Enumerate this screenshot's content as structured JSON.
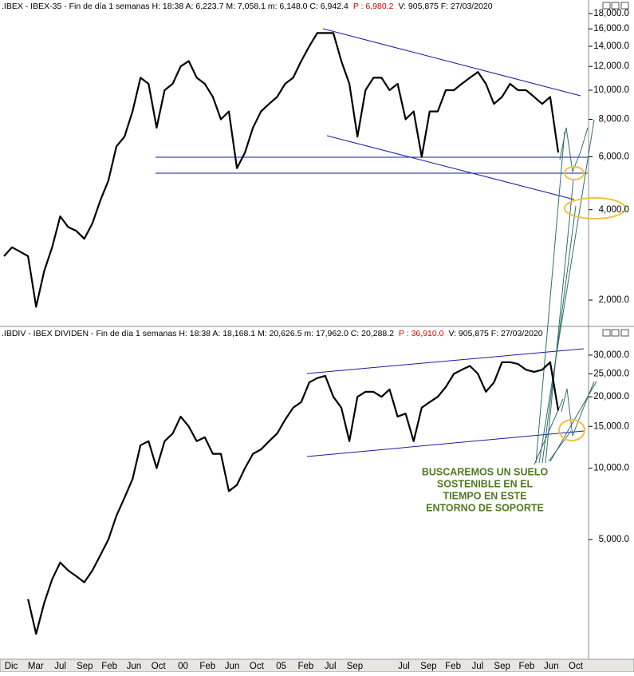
{
  "chart_data": [
    {
      "type": "line",
      "log_scale": true,
      "header": {
        "text": ".IBEX - IBEX-35 - Fin de día 1 semanas  H: 18:38  A: 6,223.7  M: 7,058.1  m: 6,148.0  C: 6,942.4",
        "p": "P : 6,980.2",
        "rest": "V: 905,875  F: 27/03/2020"
      },
      "ylim": [
        1675,
        18780
      ],
      "yticks": [
        {
          "value": 2000,
          "label": "2,000.0"
        },
        {
          "value": 4000,
          "label": "4,000.0"
        },
        {
          "value": 6000,
          "label": "6,000.0"
        },
        {
          "value": 8000,
          "label": "8,000.0"
        },
        {
          "value": 10000,
          "label": "10,000.0"
        },
        {
          "value": 12000,
          "label": "12,000.0"
        },
        {
          "value": 14000,
          "label": "14,000.0"
        },
        {
          "value": 16000,
          "label": "16,000.0"
        },
        {
          "value": 18000,
          "label": "18,000.0"
        }
      ],
      "series": [
        {
          "name": "IBEX-35",
          "color": "#000000",
          "values": [
            2800,
            3000,
            2900,
            2800,
            1900,
            2500,
            3000,
            3800,
            3500,
            3400,
            3200,
            3600,
            4300,
            5000,
            6500,
            7000,
            8500,
            11000,
            10500,
            7500,
            10000,
            10500,
            12000,
            12500,
            11000,
            10500,
            9500,
            8000,
            8500,
            5500,
            6200,
            7500,
            8500,
            9000,
            9500,
            10500,
            11000,
            12500,
            14000,
            15500,
            15500,
            15500,
            12500,
            10500,
            7000,
            10000,
            11000,
            11000,
            10000,
            10500,
            8000,
            8500,
            6000,
            8500,
            8500,
            10000,
            10000,
            10500,
            11000,
            11500,
            10500,
            9000,
            9500,
            10500,
            10000,
            10000,
            9500,
            9000,
            9500,
            6200
          ]
        }
      ]
    },
    {
      "type": "line",
      "log_scale": true,
      "header": {
        "text": ".IBDIV - IBEX DIVIDEN - Fin de día 1 semanas  H: 18:38  A: 18,168.1  M: 20,626.5  m: 17,962.0  C: 20,288.2",
        "p": "P : 36,910.0",
        "rest": "V: 905,875  F: 27/03/2020"
      },
      "ylim": [
        1638,
        35000
      ],
      "yticks": [
        {
          "value": 5000,
          "label": "5,000.0"
        },
        {
          "value": 10000,
          "label": "10,000.0"
        },
        {
          "value": 15000,
          "label": "15,000.0"
        },
        {
          "value": 20000,
          "label": "20,000.0"
        },
        {
          "value": 25000,
          "label": "25,000.0"
        },
        {
          "value": 30000,
          "label": "30,000.0"
        }
      ],
      "series": [
        {
          "name": "IBEX DIVIDEN",
          "color": "#000000",
          "values": [
            null,
            null,
            null,
            2800,
            2000,
            2700,
            3400,
            4000,
            3700,
            3500,
            3300,
            3700,
            4300,
            5000,
            6300,
            7500,
            9000,
            12500,
            13000,
            10000,
            13000,
            14000,
            16500,
            15000,
            13000,
            13500,
            11500,
            11500,
            8000,
            8500,
            10000,
            11500,
            12000,
            13000,
            14000,
            16000,
            18000,
            19000,
            23000,
            24000,
            24500,
            20000,
            18000,
            13000,
            20000,
            21000,
            21000,
            20000,
            21500,
            16500,
            17000,
            13000,
            18000,
            19000,
            20000,
            22000,
            25000,
            26000,
            27000,
            25000,
            21000,
            23000,
            28000,
            28000,
            27500,
            26000,
            25500,
            26000,
            28000,
            17500
          ]
        }
      ],
      "annotation": [
        "BUSCAREMOS UN SUELO",
        "SOSTENIBLE EN EL",
        "TIEMPO EN ESTE",
        "ENTORNO DE SOPORTE"
      ],
      "xtick_labels": [
        "Dic",
        "Mar",
        "Jul",
        "Sep",
        "Feb",
        "Jun",
        "Oct",
        "00",
        "Feb",
        "Jun",
        "Oct",
        "05",
        "Feb",
        "Jul",
        "Sep",
        null,
        "Jul",
        "Sep",
        "Feb",
        "Jul",
        "Sep",
        "Feb",
        "Jun",
        "Oct"
      ]
    }
  ]
}
